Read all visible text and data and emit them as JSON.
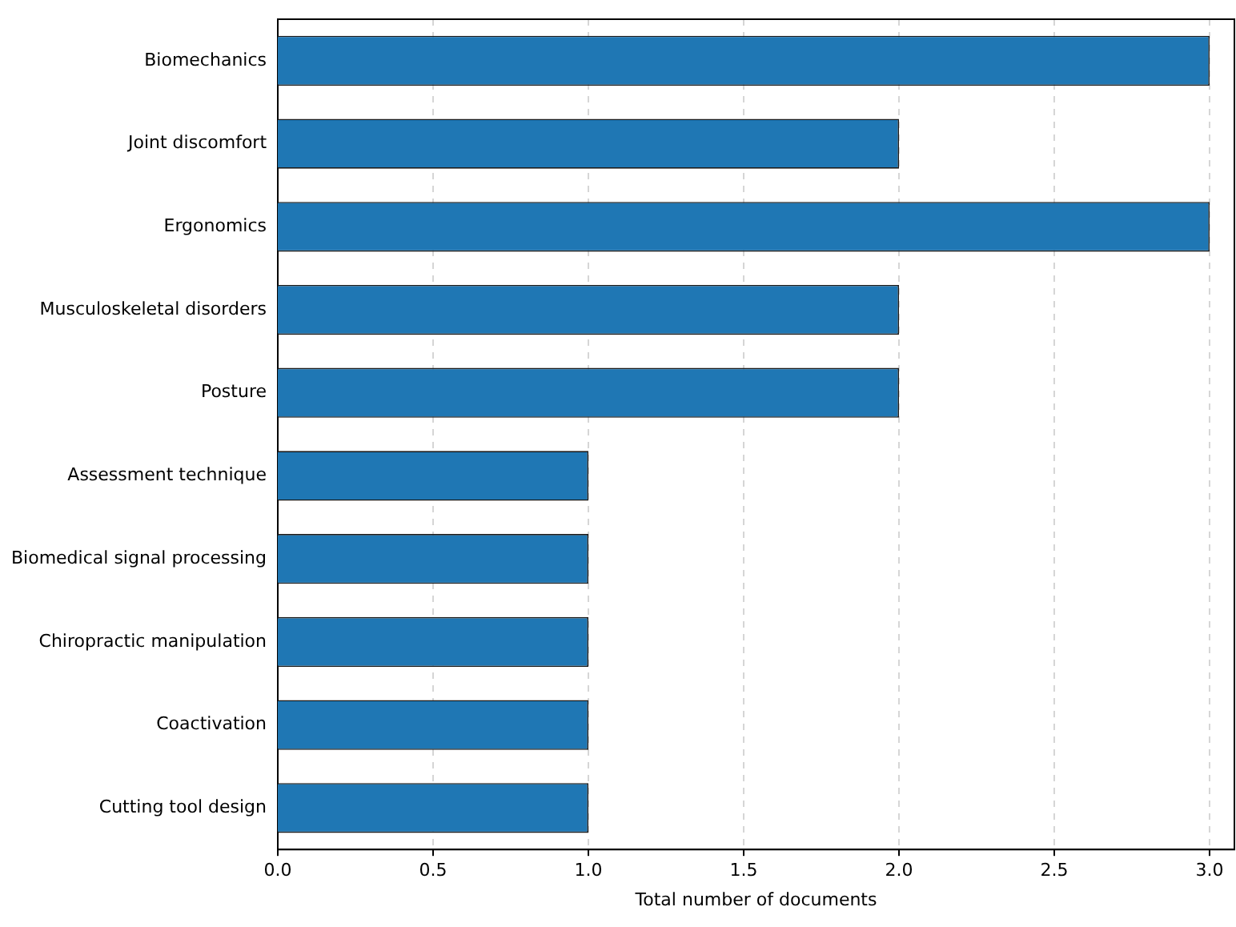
{
  "chart_data": {
    "type": "bar",
    "orientation": "horizontal",
    "xlabel": "Total number of documents",
    "categories": [
      "Biomechanics",
      "Joint discomfort",
      "Ergonomics",
      "Musculoskeletal disorders",
      "Posture",
      "Assessment technique",
      "Biomedical signal processing",
      "Chiropractic manipulation",
      "Coactivation",
      "Cutting tool design"
    ],
    "values": [
      3,
      2,
      3,
      2,
      2,
      1,
      1,
      1,
      1,
      1
    ],
    "color": "#1f77b4",
    "xlim": [
      0,
      3.08
    ],
    "xticks": [
      {
        "value": 0,
        "label": "0.0"
      },
      0.5,
      {
        "value": 1,
        "label": "1.0"
      },
      1.5,
      {
        "value": 2,
        "label": "2.0"
      },
      2.5,
      {
        "value": 3,
        "label": "3.0"
      }
    ],
    "grid": "x"
  }
}
